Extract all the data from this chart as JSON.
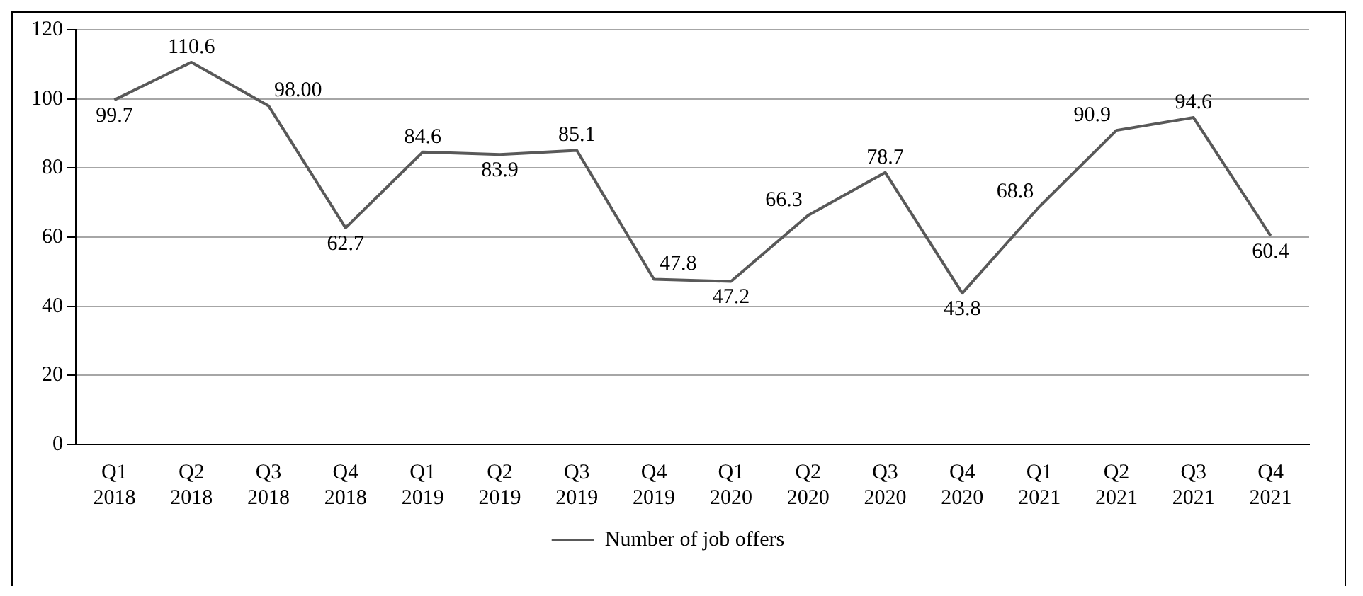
{
  "chart_data": {
    "type": "line",
    "categories": [
      "Q1 2018",
      "Q2 2018",
      "Q3 2018",
      "Q4 2018",
      "Q1 2019",
      "Q2 2019",
      "Q3 2019",
      "Q4 2019",
      "Q1 2020",
      "Q2 2020",
      "Q3 2020",
      "Q4 2020",
      "Q1 2021",
      "Q2 2021",
      "Q3 2021",
      "Q4 2021"
    ],
    "series": [
      {
        "name": "Number of job offers",
        "color": "#595959",
        "values": [
          99.7,
          110.6,
          98.0,
          62.7,
          84.6,
          83.9,
          85.1,
          47.8,
          47.2,
          66.3,
          78.7,
          43.8,
          68.8,
          90.9,
          94.6,
          60.4
        ],
        "value_labels": [
          "99.7",
          "110.6",
          "98.00",
          "62.7",
          "84.6",
          "83.9",
          "85.1",
          "47.8",
          "47.2",
          "66.3",
          "78.7",
          "43.8",
          "68.8",
          "90.9",
          "94.6",
          "60.4"
        ]
      }
    ],
    "ylim": [
      0,
      120
    ],
    "yticks": [
      0,
      20,
      40,
      60,
      80,
      100,
      120
    ],
    "grid": "y",
    "legend": "bottom",
    "marker": "none",
    "line_style": "solid"
  }
}
